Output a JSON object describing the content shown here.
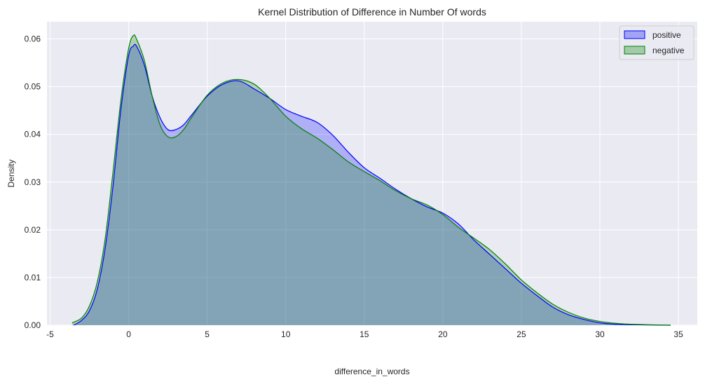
{
  "chart_data": {
    "type": "area",
    "title": "Kernel Distribution of Difference in Number Of words",
    "xlabel": "difference_in_words",
    "ylabel": "Density",
    "xlim": [
      -5.2,
      36.2
    ],
    "ylim": [
      0,
      0.0636
    ],
    "xticks": [
      -5,
      0,
      5,
      10,
      15,
      20,
      25,
      30,
      35
    ],
    "yticks": [
      0.0,
      0.01,
      0.02,
      0.03,
      0.04,
      0.05,
      0.06
    ],
    "ytick_labels": [
      "0.00",
      "0.01",
      "0.02",
      "0.03",
      "0.04",
      "0.05",
      "0.06"
    ],
    "grid": true,
    "legend_position": "top-right",
    "series": [
      {
        "name": "positive",
        "line_color": "#0000ff",
        "fill_color": "#0000ff",
        "points": [
          [
            -3.5,
            0.0
          ],
          [
            -3.0,
            0.001
          ],
          [
            -2.5,
            0.003
          ],
          [
            -2.0,
            0.0075
          ],
          [
            -1.5,
            0.016
          ],
          [
            -1.0,
            0.029
          ],
          [
            -0.5,
            0.045
          ],
          [
            0.0,
            0.0565
          ],
          [
            0.3,
            0.0585
          ],
          [
            0.5,
            0.0585
          ],
          [
            1.0,
            0.0545
          ],
          [
            1.5,
            0.048
          ],
          [
            2.0,
            0.0435
          ],
          [
            2.5,
            0.041
          ],
          [
            3.0,
            0.041
          ],
          [
            3.5,
            0.042
          ],
          [
            4.0,
            0.044
          ],
          [
            5.0,
            0.048
          ],
          [
            6.0,
            0.0505
          ],
          [
            7.0,
            0.0512
          ],
          [
            8.0,
            0.0495
          ],
          [
            9.0,
            0.0475
          ],
          [
            10.0,
            0.0452
          ],
          [
            11.0,
            0.0438
          ],
          [
            12.0,
            0.0425
          ],
          [
            13.0,
            0.0398
          ],
          [
            14.0,
            0.0362
          ],
          [
            15.0,
            0.033
          ],
          [
            16.0,
            0.0308
          ],
          [
            17.0,
            0.0285
          ],
          [
            18.0,
            0.0265
          ],
          [
            19.0,
            0.0248
          ],
          [
            20.0,
            0.0235
          ],
          [
            21.0,
            0.0212
          ],
          [
            22.0,
            0.0178
          ],
          [
            23.0,
            0.0148
          ],
          [
            24.0,
            0.0118
          ],
          [
            25.0,
            0.0088
          ],
          [
            26.0,
            0.0062
          ],
          [
            27.0,
            0.0038
          ],
          [
            28.0,
            0.0022
          ],
          [
            29.0,
            0.0012
          ],
          [
            30.0,
            0.0005
          ],
          [
            31.0,
            0.0002
          ],
          [
            32.0,
            0.0001
          ],
          [
            34.5,
            0.0
          ]
        ]
      },
      {
        "name": "negative",
        "line_color": "#008000",
        "fill_color": "#008000",
        "points": [
          [
            -3.6,
            0.0005
          ],
          [
            -3.0,
            0.0015
          ],
          [
            -2.5,
            0.004
          ],
          [
            -2.0,
            0.009
          ],
          [
            -1.5,
            0.018
          ],
          [
            -1.0,
            0.032
          ],
          [
            -0.5,
            0.047
          ],
          [
            0.0,
            0.058
          ],
          [
            0.3,
            0.0607
          ],
          [
            0.5,
            0.06
          ],
          [
            1.0,
            0.0555
          ],
          [
            1.5,
            0.048
          ],
          [
            2.0,
            0.042
          ],
          [
            2.5,
            0.0395
          ],
          [
            3.0,
            0.0395
          ],
          [
            3.5,
            0.041
          ],
          [
            4.0,
            0.0435
          ],
          [
            5.0,
            0.0482
          ],
          [
            6.0,
            0.0508
          ],
          [
            7.0,
            0.0515
          ],
          [
            8.0,
            0.0505
          ],
          [
            9.0,
            0.0475
          ],
          [
            10.0,
            0.0438
          ],
          [
            11.0,
            0.0412
          ],
          [
            12.0,
            0.0392
          ],
          [
            13.0,
            0.0368
          ],
          [
            14.0,
            0.0342
          ],
          [
            15.0,
            0.0322
          ],
          [
            16.0,
            0.0303
          ],
          [
            17.0,
            0.0282
          ],
          [
            18.0,
            0.0265
          ],
          [
            19.0,
            0.0252
          ],
          [
            20.0,
            0.0232
          ],
          [
            21.0,
            0.0205
          ],
          [
            22.0,
            0.0182
          ],
          [
            23.0,
            0.0158
          ],
          [
            24.0,
            0.0128
          ],
          [
            25.0,
            0.0095
          ],
          [
            26.0,
            0.0068
          ],
          [
            27.0,
            0.0044
          ],
          [
            28.0,
            0.0027
          ],
          [
            29.0,
            0.0015
          ],
          [
            30.0,
            0.0008
          ],
          [
            31.0,
            0.0004
          ],
          [
            32.0,
            0.0002
          ],
          [
            34.5,
            0.0
          ]
        ]
      }
    ]
  }
}
